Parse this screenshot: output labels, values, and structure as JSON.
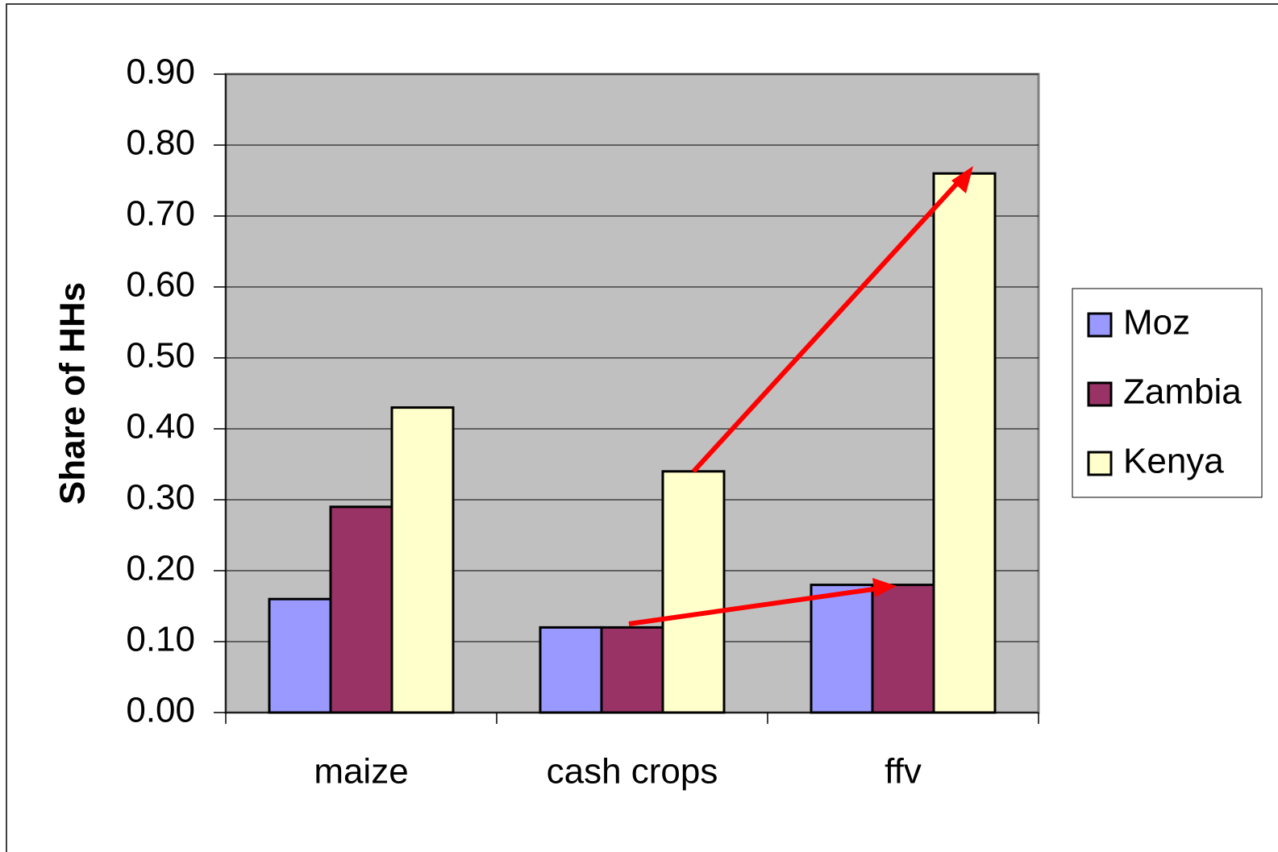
{
  "chart_data": {
    "type": "bar",
    "y_label": "Share of HHs",
    "categories": [
      "maize",
      "cash crops",
      "ffv"
    ],
    "series": [
      {
        "name": "Moz",
        "color": "#9999ff",
        "values": [
          0.16,
          0.12,
          0.18
        ]
      },
      {
        "name": "Zambia",
        "color": "#993366",
        "values": [
          0.29,
          0.12,
          0.18
        ]
      },
      {
        "name": "Kenya",
        "color": "#ffffcc",
        "values": [
          0.43,
          0.34,
          0.76
        ]
      }
    ],
    "ylim": [
      0,
      0.9
    ],
    "yticks": [
      {
        "value": 0,
        "label": "0.00"
      },
      {
        "value": 0.1,
        "label": "0.10"
      },
      {
        "value": 0.2,
        "label": "0.20"
      },
      {
        "value": 0.3,
        "label": "0.30"
      },
      {
        "value": 0.4,
        "label": "0.40"
      },
      {
        "value": 0.5,
        "label": "0.50"
      },
      {
        "value": 0.6,
        "label": "0.60"
      },
      {
        "value": 0.7,
        "label": "0.70"
      },
      {
        "value": 0.8,
        "label": "0.80"
      },
      {
        "value": 0.9,
        "label": "0.90"
      }
    ],
    "grid": true,
    "plot_background": "#c0c0c0",
    "legend": "right"
  }
}
